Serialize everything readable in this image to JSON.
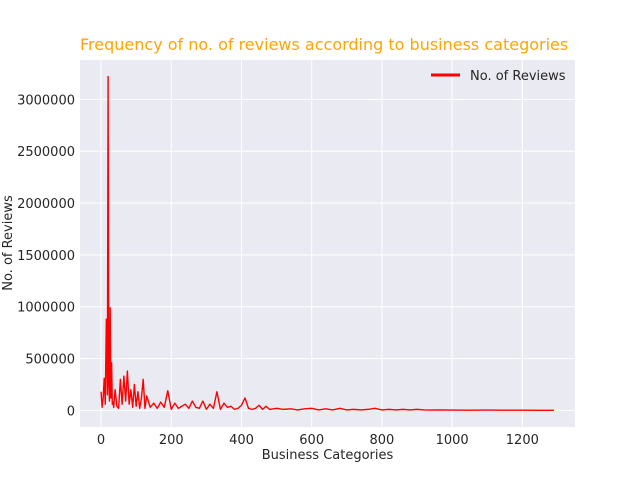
{
  "chart_data": {
    "type": "line",
    "title": "Frequency of no. of reviews according to business categories",
    "xlabel": "Business Categories",
    "ylabel": "No. of Reviews",
    "xlim": [
      -60,
      1350
    ],
    "ylim": [
      -160000,
      3380000
    ],
    "x_ticks": [
      0,
      200,
      400,
      600,
      800,
      1000,
      1200
    ],
    "y_ticks": [
      0,
      500000,
      1000000,
      1500000,
      2000000,
      2500000,
      3000000
    ],
    "grid": true,
    "legend_position": "top-right",
    "series": [
      {
        "name": "No. of Reviews",
        "color": "#ff0000",
        "x": [
          0,
          3,
          6,
          9,
          12,
          15,
          18,
          20,
          22,
          24,
          26,
          28,
          30,
          32,
          34,
          36,
          40,
          45,
          50,
          55,
          60,
          65,
          70,
          75,
          80,
          85,
          90,
          95,
          100,
          105,
          110,
          115,
          120,
          125,
          130,
          140,
          150,
          160,
          170,
          180,
          190,
          200,
          210,
          220,
          230,
          240,
          250,
          260,
          270,
          280,
          290,
          300,
          310,
          320,
          330,
          340,
          350,
          360,
          370,
          380,
          390,
          400,
          410,
          420,
          430,
          440,
          450,
          460,
          470,
          480,
          500,
          520,
          540,
          560,
          580,
          600,
          620,
          640,
          660,
          680,
          700,
          720,
          740,
          760,
          780,
          800,
          820,
          840,
          860,
          880,
          900,
          920,
          940,
          960,
          1000,
          1050,
          1100,
          1150,
          1200,
          1250,
          1290
        ],
        "y": [
          180000,
          30000,
          120000,
          310000,
          60000,
          880000,
          150000,
          3220000,
          250000,
          90000,
          990000,
          120000,
          460000,
          60000,
          80000,
          30000,
          200000,
          40000,
          20000,
          300000,
          60000,
          330000,
          90000,
          380000,
          60000,
          200000,
          30000,
          250000,
          40000,
          180000,
          20000,
          120000,
          300000,
          20000,
          140000,
          30000,
          70000,
          20000,
          80000,
          30000,
          190000,
          10000,
          70000,
          20000,
          40000,
          60000,
          20000,
          90000,
          30000,
          20000,
          90000,
          10000,
          60000,
          20000,
          180000,
          10000,
          70000,
          30000,
          40000,
          10000,
          20000,
          50000,
          120000,
          20000,
          10000,
          20000,
          50000,
          10000,
          40000,
          10000,
          20000,
          10000,
          15000,
          5000,
          15000,
          20000,
          5000,
          15000,
          5000,
          20000,
          5000,
          10000,
          5000,
          10000,
          20000,
          5000,
          10000,
          5000,
          10000,
          5000,
          10000,
          5000,
          3000,
          5000,
          3000,
          2000,
          3000,
          2000,
          2000,
          1000,
          1000
        ]
      }
    ]
  },
  "colors": {
    "plot_background": "#eaeaf2",
    "grid": "#ffffff",
    "title": "#ffa500",
    "text": "#262626",
    "line": "#ff0000"
  }
}
